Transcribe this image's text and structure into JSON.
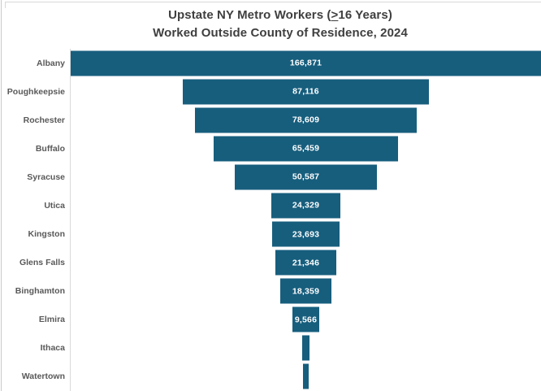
{
  "title": {
    "line1_prefix": "Upstate NY Metro Workers (",
    "line1_geq": ">",
    "line1_suffix": "16 Years)",
    "line2": "Worked Outside County of Residence, 2024"
  },
  "colors": {
    "bar": "#175e7d",
    "title_text": "#3f3f3f",
    "category_text": "#595959",
    "value_text": "#ffffff",
    "axis_line": "#d9d9d9",
    "frame_border": "#d9d9d9"
  },
  "chart_data": {
    "type": "bar",
    "subtype": "centered-funnel",
    "orientation": "horizontal",
    "title": "Upstate NY Metro Workers (≥16 Years) Worked Outside County of Residence, 2024",
    "categories": [
      "Albany",
      "Poughkeepsie",
      "Rochester",
      "Buffalo",
      "Syracuse",
      "Utica",
      "Kingston",
      "Glens Falls",
      "Binghamton",
      "Elmira",
      "Ithaca",
      "Watertown"
    ],
    "values": [
      166871,
      87116,
      78609,
      65459,
      50587,
      24329,
      23693,
      21346,
      18359,
      9566,
      2800,
      1900
    ],
    "value_labels": [
      "166,871",
      "87,116",
      "78,609",
      "65,459",
      "50,587",
      "24,329",
      "23,693",
      "21,346",
      "18,359",
      "9,566",
      "",
      ""
    ],
    "xlim": [
      0,
      166871
    ],
    "grid": false,
    "legend": false,
    "note": "Ithaca and Watertown bars carry no data labels; their values are estimated from rendered bar width"
  }
}
